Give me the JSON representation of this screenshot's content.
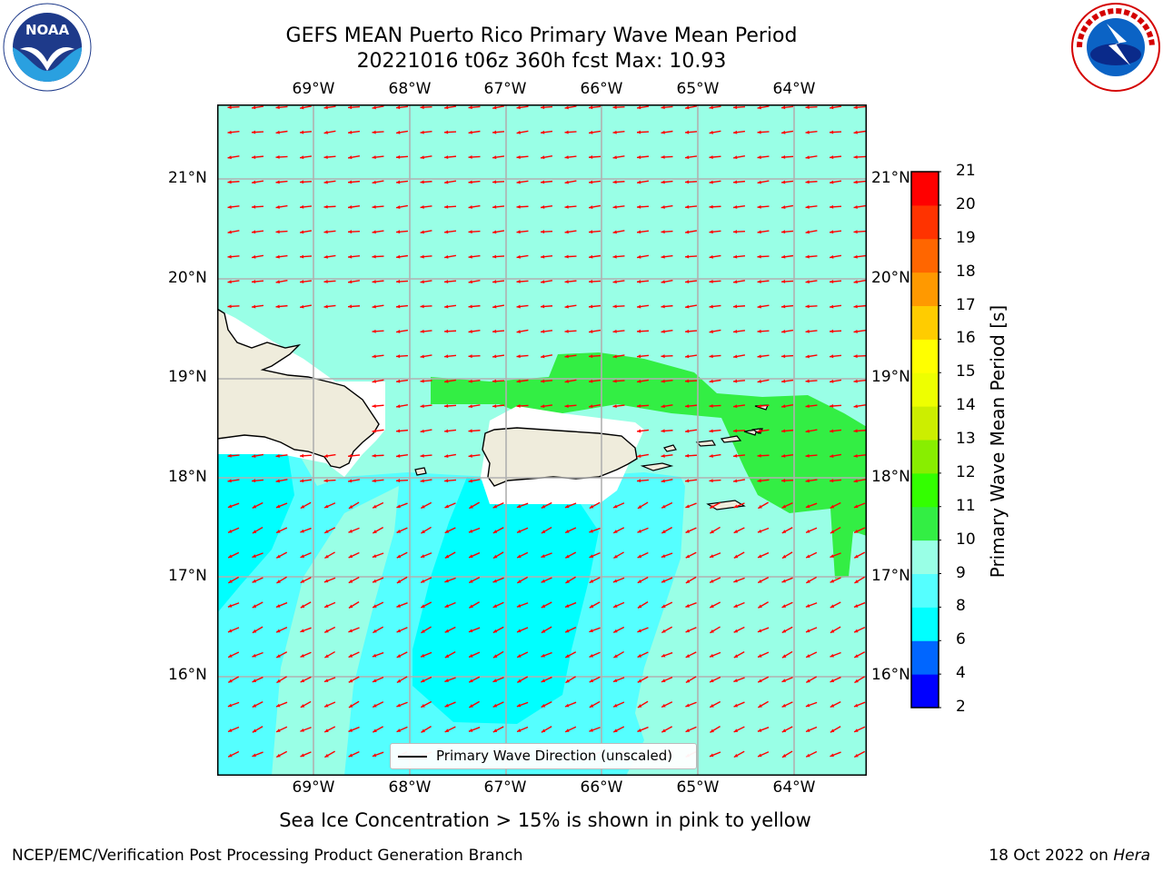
{
  "header": {
    "title_line1": "GEFS MEAN Puerto Rico Primary Wave Mean Period",
    "title_line2": "20221016 t06z 360h fcst   Max: 10.93"
  },
  "logos": {
    "left": {
      "name": "noaa-logo",
      "text": "NOAA",
      "ring_text": "NATIONAL OCEANIC AND ATMOSPHERIC ADMINISTRATION · U.S. DEPARTMENT OF COMMERCE"
    },
    "right": {
      "name": "nws-logo",
      "ring_text": "NATIONAL WEATHER SERVICE"
    }
  },
  "map": {
    "lon_labels": [
      "69°W",
      "68°W",
      "67°W",
      "66°W",
      "65°W",
      "64°W"
    ],
    "lat_labels": [
      "21°N",
      "20°N",
      "19°N",
      "18°N",
      "17°N",
      "16°N"
    ],
    "legend_label": "Primary Wave Direction (unscaled)",
    "colors": {
      "land": "#efecdc",
      "arrow": "#ff0000",
      "grid": "#b0b0b0",
      "p8_9": "#55ffff",
      "p9_10": "#99ffe6",
      "p6_8": "#00ffff",
      "p10_11": "#33ee44"
    }
  },
  "colorbar": {
    "label": "Primary Wave Mean Period [s]",
    "ticks": [
      "2",
      "4",
      "6",
      "8",
      "9",
      "10",
      "11",
      "12",
      "13",
      "14",
      "15",
      "16",
      "17",
      "18",
      "19",
      "20",
      "21"
    ],
    "colors": [
      "#0000ff",
      "#0066ff",
      "#00ffff",
      "#55ffff",
      "#99ffe6",
      "#33ee44",
      "#33ff00",
      "#88ee00",
      "#ccee00",
      "#eeff00",
      "#ffff00",
      "#ffcc00",
      "#ff9900",
      "#ff6600",
      "#ff3300",
      "#ff0000"
    ]
  },
  "footer": {
    "note": "Sea Ice Concentration > 15% is shown in pink to yellow",
    "left": "NCEP/EMC/Verification Post Processing Product Generation Branch",
    "date": "18 Oct 2022 on ",
    "machine": "Hera"
  }
}
